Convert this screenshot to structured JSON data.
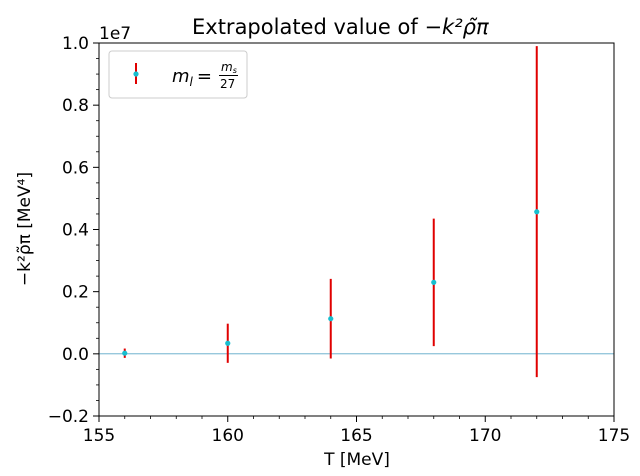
{
  "chart_data": {
    "type": "scatter",
    "title": "Extrapolated value of",
    "title_math": "−k²ρ̃π",
    "xlabel": "T [MeV]",
    "ylabel": "−k²ρ̃π [MeV⁴]",
    "y_offset_label": "1e7",
    "xlim": [
      155,
      175
    ],
    "ylim": [
      -0.2,
      1.0
    ],
    "y_scale": 10000000,
    "x_ticks": [
      155,
      160,
      165,
      170,
      175
    ],
    "x_tick_labels": [
      "155",
      "160",
      "165",
      "170",
      "175"
    ],
    "y_ticks": [
      -0.2,
      0.0,
      0.2,
      0.4,
      0.6,
      0.8,
      1.0
    ],
    "y_tick_labels": [
      "−0.2",
      "0.0",
      "0.2",
      "0.4",
      "0.6",
      "0.8",
      "1.0"
    ],
    "hline_y": 0.0,
    "series": [
      {
        "name": "m_l = m_s / 27",
        "legend_label": "m",
        "legend_sub": "l",
        "legend_eq": "=",
        "legend_num": "m",
        "legend_num_sub": "s",
        "legend_den": "27",
        "marker_color": "#17becf",
        "errorbar_color": "#e00000",
        "x": [
          156,
          160,
          164,
          168,
          172
        ],
        "y": [
          0.002,
          0.034,
          0.113,
          0.23,
          0.457
        ],
        "yerr_low": [
          0.015,
          0.063,
          0.128,
          0.205,
          0.532
        ],
        "yerr_high": [
          0.015,
          0.063,
          0.128,
          0.205,
          0.533
        ]
      }
    ],
    "hline_color": "#5aa8c8"
  }
}
